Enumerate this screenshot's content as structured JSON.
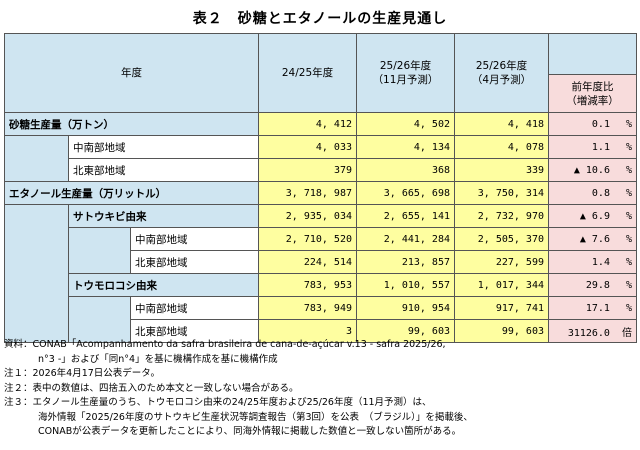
{
  "title": "表２　砂糖とエタノールの生産見通し",
  "header": {
    "nendo": "年度",
    "col1": "24/25年度",
    "col2_line1": "25/26年度",
    "col2_line2": "（11月予測）",
    "col3_line1": "25/26年度",
    "col3_line2": "（4月予測）",
    "col4_line1": "前年度比",
    "col4_line2": "（増減率）"
  },
  "rows": [
    {
      "label": "砂糖生産量（万トン）",
      "v1": "4, 412",
      "v2": "4, 502",
      "v3": "4, 418",
      "ratio": "0.1",
      "unit": "%"
    },
    {
      "label": "中南部地域",
      "v1": "4, 033",
      "v2": "4, 134",
      "v3": "4, 078",
      "ratio": "1.1",
      "unit": "%"
    },
    {
      "label": "北東部地域",
      "v1": "379",
      "v2": "368",
      "v3": "339",
      "ratio": "▲ 10.6",
      "unit": "%"
    },
    {
      "label": "エタノール生産量（万リットル）",
      "v1": "3, 718, 987",
      "v2": "3, 665, 698",
      "v3": "3, 750, 314",
      "ratio": "0.8",
      "unit": "%"
    },
    {
      "label": "サトウキビ由来",
      "v1": "2, 935, 034",
      "v2": "2, 655, 141",
      "v3": "2, 732, 970",
      "ratio": "▲ 6.9",
      "unit": "%"
    },
    {
      "label": "中南部地域",
      "v1": "2, 710, 520",
      "v2": "2, 441, 284",
      "v3": "2, 505, 370",
      "ratio": "▲ 7.6",
      "unit": "%"
    },
    {
      "label": "北東部地域",
      "v1": "224, 514",
      "v2": "213, 857",
      "v3": "227, 599",
      "ratio": "1.4",
      "unit": "%"
    },
    {
      "label": "トウモロコシ由来",
      "v1": "783, 953",
      "v2": "1, 010, 557",
      "v3": "1, 017, 344",
      "ratio": "29.8",
      "unit": "%"
    },
    {
      "label": "中南部地域",
      "v1": "783, 949",
      "v2": "910, 954",
      "v3": "917, 741",
      "ratio": "17.1",
      "unit": "%"
    },
    {
      "label": "北東部地域",
      "v1": "3",
      "v2": "99, 603",
      "v3": "99, 603",
      "ratio": "31126.0",
      "unit": "倍"
    }
  ],
  "notes": {
    "source_1": "資料：CONAB「Acompanhamento da safra brasileira de cana-de-açúcar v.13 - safra 2025/26,",
    "source_2": "n°3 -」および「同n°4」を基に機構作成を基に機構作成",
    "note1": "注１：2026年4月17日公表データ。",
    "note2": "注２：表中の数値は、四捨五入のため本文と一致しない場合がある。",
    "note3_1": "注３：エタノール生産量のうち、トウモロコシ由来の24/25年度および25/26年度（11月予測）は、",
    "note3_2": "海外情報「2025/26年度のサトウキビ生産状況等調査報告（第3回）を公表　（ブラジル）」を掲載後、",
    "note3_3": "CONABが公表データを更新したことにより、同海外情報に掲載した数値と一致しない箇所がある。"
  }
}
